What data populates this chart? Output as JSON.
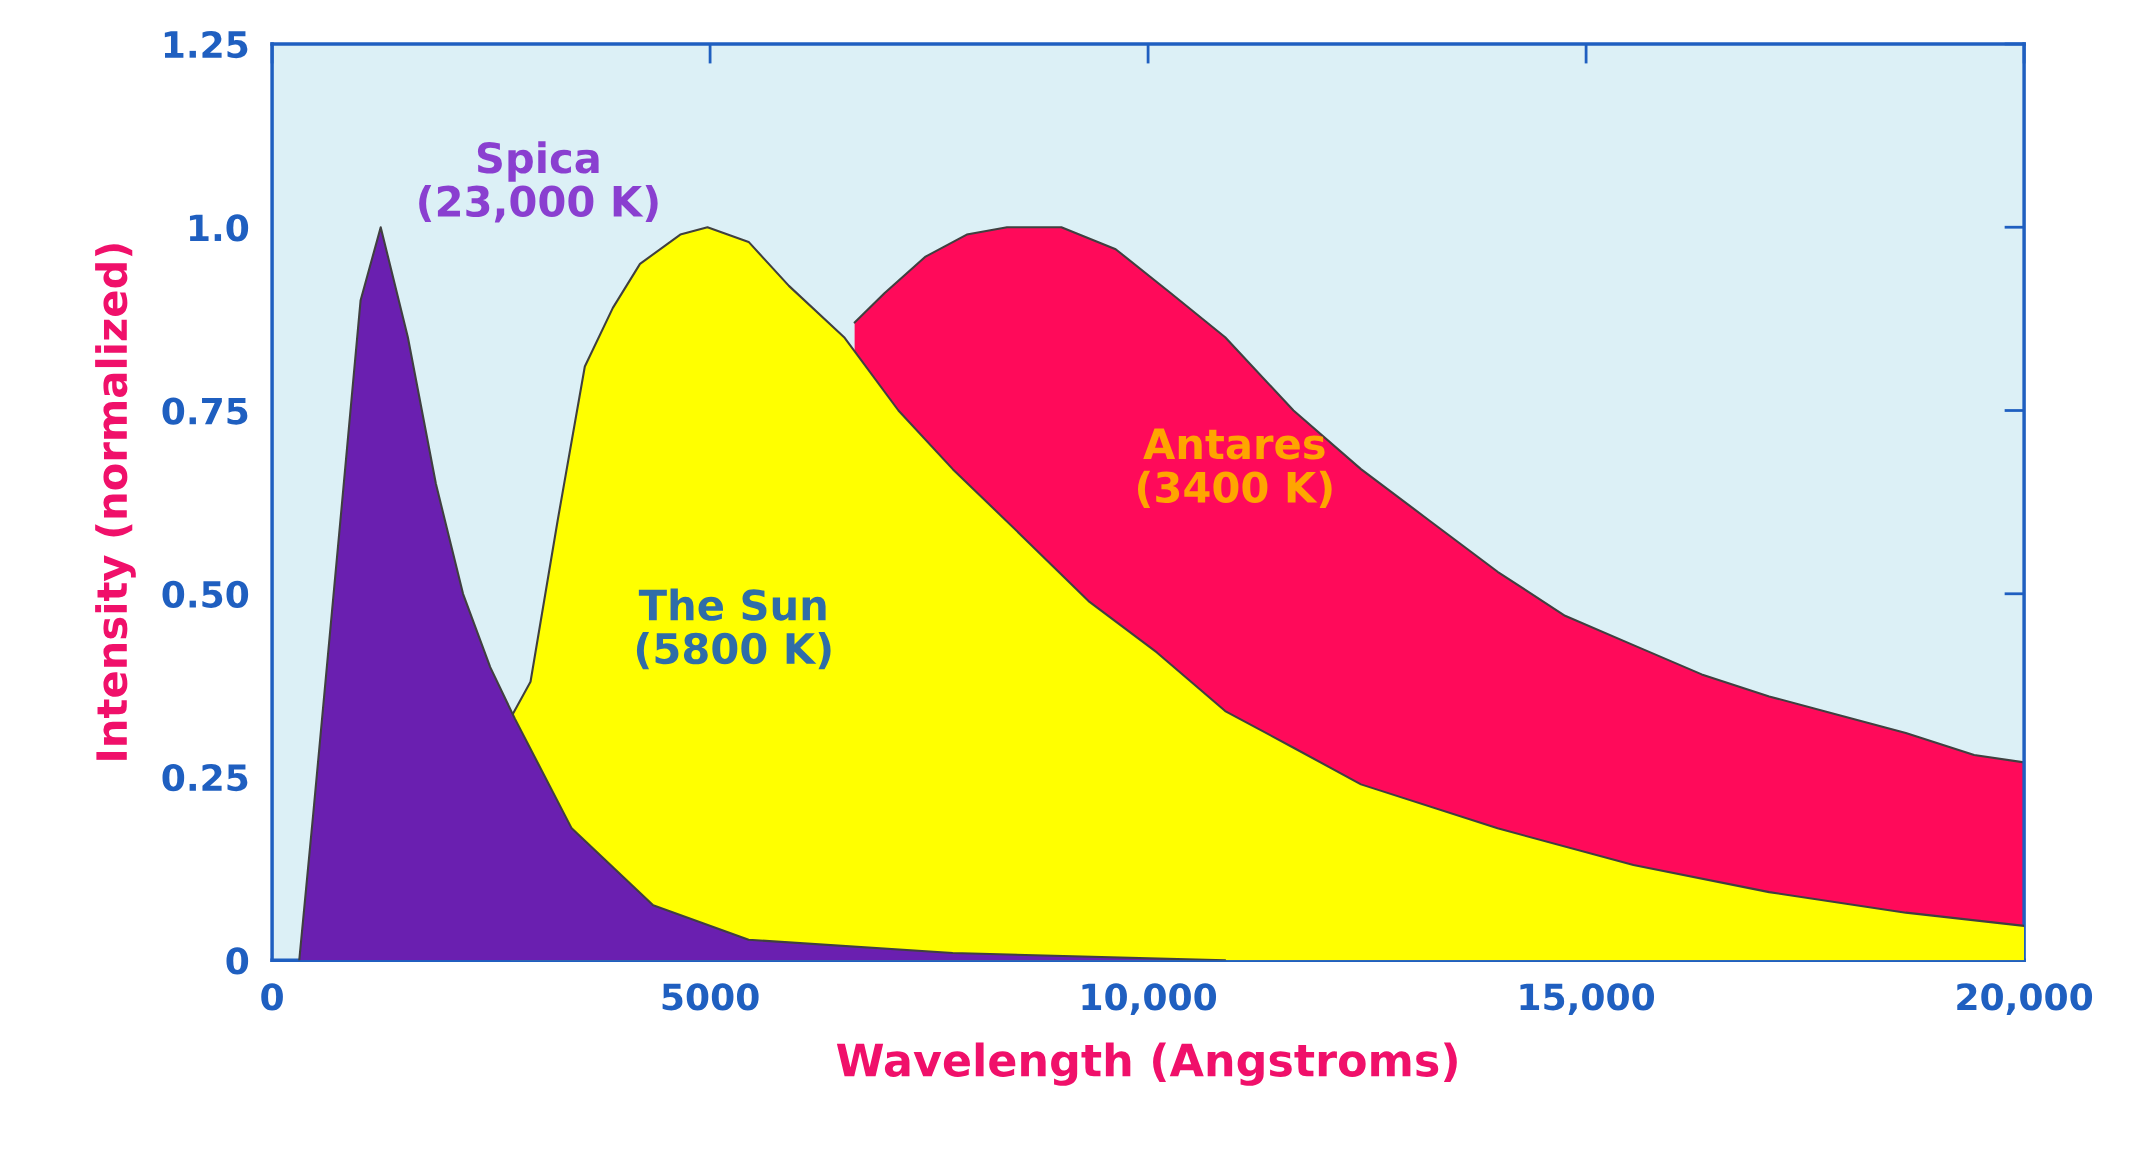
{
  "chart_data": {
    "type": "area",
    "xlabel": "Wavelength (Angstroms)",
    "ylabel": "Intensity (normalized)",
    "xlim": [
      0,
      20000
    ],
    "xticks": [
      0,
      5000,
      {
        "value": 10000,
        "label": "10,000"
      },
      {
        "value": 15000,
        "label": "15,000"
      },
      {
        "value": 20000,
        "label": "20,000"
      }
    ],
    "ylim": [
      0,
      1.25
    ],
    "yticks": [
      0,
      0.25,
      {
        "value": 0.5,
        "label": "0.50"
      },
      0.75,
      {
        "value": 1.0,
        "label": "1.0"
      },
      1.25
    ],
    "grid": false,
    "legend": false,
    "series": [
      {
        "name": "Antares\n(3400 K)",
        "color": "#ff0a5a",
        "x": [
          6650,
          6990,
          7460,
          7930,
          8390,
          9010,
          9630,
          10260,
          10880,
          11660,
          12430,
          13210,
          13990,
          14760,
          15540,
          16320,
          17090,
          17870,
          18650,
          19430,
          20000
        ],
        "values": [
          0.87,
          0.91,
          0.96,
          0.99,
          1.0,
          1.0,
          0.97,
          0.91,
          0.85,
          0.75,
          0.67,
          0.6,
          0.53,
          0.47,
          0.43,
          0.39,
          0.36,
          0.335,
          0.31,
          0.28,
          0.27
        ]
      },
      {
        "name": "The Sun\n(5800 K)",
        "color": "#ffff00",
        "x": [
          2720,
          2950,
          3260,
          3570,
          3890,
          4200,
          4660,
          4970,
          5440,
          5900,
          6530,
          7150,
          7770,
          8550,
          9320,
          10100,
          10880,
          11660,
          12430,
          13990,
          15540,
          17090,
          18650,
          20000
        ],
        "values": [
          0.33,
          0.38,
          0.6,
          0.81,
          0.89,
          0.95,
          0.99,
          1.0,
          0.98,
          0.92,
          0.85,
          0.75,
          0.67,
          0.58,
          0.49,
          0.42,
          0.34,
          0.29,
          0.24,
          0.18,
          0.13,
          0.093,
          0.065,
          0.047
        ]
      },
      {
        "name": "Spica\n(23,000 K)",
        "color": "#6a1fb0",
        "x": [
          310,
          470,
          780,
          1010,
          1240,
          1550,
          1870,
          2180,
          2490,
          2770,
          3420,
          4350,
          5440,
          7770,
          10880
        ],
        "values": [
          0,
          0.2,
          0.6,
          0.9,
          1.0,
          0.85,
          0.65,
          0.5,
          0.4,
          0.33,
          0.18,
          0.075,
          0.028,
          0.01,
          0
        ]
      }
    ]
  }
}
